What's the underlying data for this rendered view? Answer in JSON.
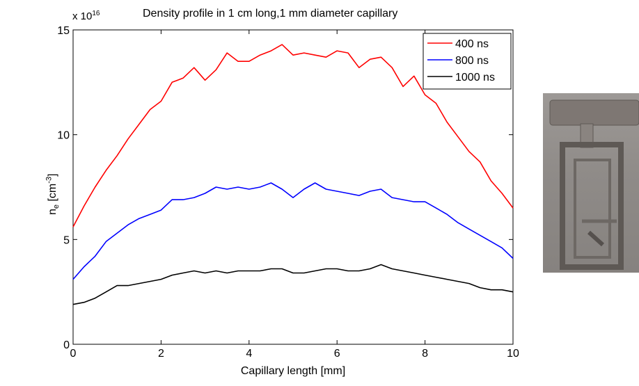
{
  "chart_data": {
    "type": "line",
    "title": "Density profile in 1 cm long,1 mm diameter capillary",
    "xlabel": "Capillary length [mm]",
    "ylabel_main": "n",
    "ylabel_sub": "e",
    "ylabel_unit": " [cm",
    "ylabel_unit_exp": "-3",
    "ylabel_close": "]",
    "y_multiplier_base": "x 10",
    "y_multiplier_exp": "16",
    "xlim": [
      0,
      10
    ],
    "ylim": [
      0,
      15
    ],
    "x_ticks": [
      "0",
      "2",
      "4",
      "6",
      "8",
      "10"
    ],
    "y_ticks": [
      "0",
      "5",
      "10",
      "15"
    ],
    "legend_position": "top-right",
    "x": [
      0,
      0.25,
      0.5,
      0.75,
      1,
      1.25,
      1.5,
      1.75,
      2,
      2.25,
      2.5,
      2.75,
      3,
      3.25,
      3.5,
      3.75,
      4,
      4.25,
      4.5,
      4.75,
      5,
      5.25,
      5.5,
      5.75,
      6,
      6.25,
      6.5,
      6.75,
      7,
      7.25,
      7.5,
      7.75,
      8,
      8.25,
      8.5,
      8.75,
      9,
      9.25,
      9.5,
      9.75,
      10
    ],
    "series": [
      {
        "name": "400 ns",
        "color": "#ff0000",
        "values": [
          5.6,
          6.6,
          7.5,
          8.3,
          9.0,
          9.8,
          10.5,
          11.2,
          11.6,
          12.5,
          12.7,
          13.2,
          12.6,
          13.1,
          13.9,
          13.5,
          13.5,
          13.8,
          14.0,
          14.3,
          13.8,
          13.9,
          13.8,
          13.7,
          14.0,
          13.9,
          13.2,
          13.6,
          13.7,
          13.2,
          12.3,
          12.8,
          11.9,
          11.5,
          10.6,
          9.9,
          9.2,
          8.7,
          7.8,
          7.2,
          6.5
        ]
      },
      {
        "name": "800 ns",
        "color": "#0000ff",
        "values": [
          3.1,
          3.7,
          4.2,
          4.9,
          5.3,
          5.7,
          6.0,
          6.2,
          6.4,
          6.9,
          6.9,
          7.0,
          7.2,
          7.5,
          7.4,
          7.5,
          7.4,
          7.5,
          7.7,
          7.4,
          7.0,
          7.4,
          7.7,
          7.4,
          7.3,
          7.2,
          7.1,
          7.3,
          7.4,
          7.0,
          6.9,
          6.8,
          6.8,
          6.5,
          6.2,
          5.8,
          5.5,
          5.2,
          4.9,
          4.6,
          4.1
        ]
      },
      {
        "name": "1000 ns",
        "color": "#000000",
        "values": [
          1.9,
          2.0,
          2.2,
          2.5,
          2.8,
          2.8,
          2.9,
          3.0,
          3.1,
          3.3,
          3.4,
          3.5,
          3.4,
          3.5,
          3.4,
          3.5,
          3.5,
          3.5,
          3.6,
          3.6,
          3.4,
          3.4,
          3.5,
          3.6,
          3.6,
          3.5,
          3.5,
          3.6,
          3.8,
          3.6,
          3.5,
          3.4,
          3.3,
          3.2,
          3.1,
          3.0,
          2.9,
          2.7,
          2.6,
          2.6,
          2.5
        ]
      }
    ]
  }
}
